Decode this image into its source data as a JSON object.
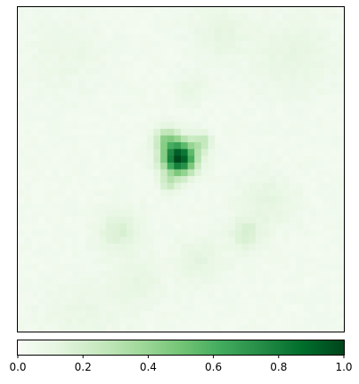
{
  "chart_data": {
    "type": "heatmap",
    "title": "",
    "xlabel": "",
    "ylabel": "",
    "colormap": "Greens",
    "grid_resolution": 48,
    "value_range": [
      0,
      1
    ],
    "background_level": 0.04,
    "blobs": [
      {
        "cx": 0.495,
        "cy": 0.465,
        "sigma": 0.035,
        "amplitude": 0.97
      },
      {
        "cx": 0.455,
        "cy": 0.405,
        "sigma": 0.025,
        "amplitude": 0.3
      },
      {
        "cx": 0.565,
        "cy": 0.415,
        "sigma": 0.02,
        "amplitude": 0.22
      },
      {
        "cx": 0.465,
        "cy": 0.545,
        "sigma": 0.018,
        "amplitude": 0.2
      },
      {
        "cx": 0.31,
        "cy": 0.69,
        "sigma": 0.045,
        "amplitude": 0.13
      },
      {
        "cx": 0.7,
        "cy": 0.7,
        "sigma": 0.035,
        "amplitude": 0.13
      },
      {
        "cx": 0.76,
        "cy": 0.6,
        "sigma": 0.06,
        "amplitude": 0.08
      },
      {
        "cx": 0.56,
        "cy": 0.78,
        "sigma": 0.05,
        "amplitude": 0.08
      },
      {
        "cx": 0.37,
        "cy": 0.85,
        "sigma": 0.05,
        "amplitude": 0.07
      },
      {
        "cx": 0.85,
        "cy": 0.15,
        "sigma": 0.08,
        "amplitude": 0.07
      },
      {
        "cx": 0.62,
        "cy": 0.08,
        "sigma": 0.06,
        "amplitude": 0.07
      },
      {
        "cx": 0.53,
        "cy": 0.25,
        "sigma": 0.03,
        "amplitude": 0.06
      },
      {
        "cx": 0.15,
        "cy": 0.15,
        "sigma": 0.08,
        "amplitude": 0.04
      },
      {
        "cx": 0.2,
        "cy": 0.95,
        "sigma": 0.08,
        "amplitude": 0.05
      }
    ],
    "colorbar": {
      "ticks": [
        0.0,
        0.2,
        0.4,
        0.6,
        0.8,
        1.0
      ],
      "tick_labels": [
        "0.0",
        "0.2",
        "0.4",
        "0.6",
        "0.8",
        "1.0"
      ]
    }
  }
}
